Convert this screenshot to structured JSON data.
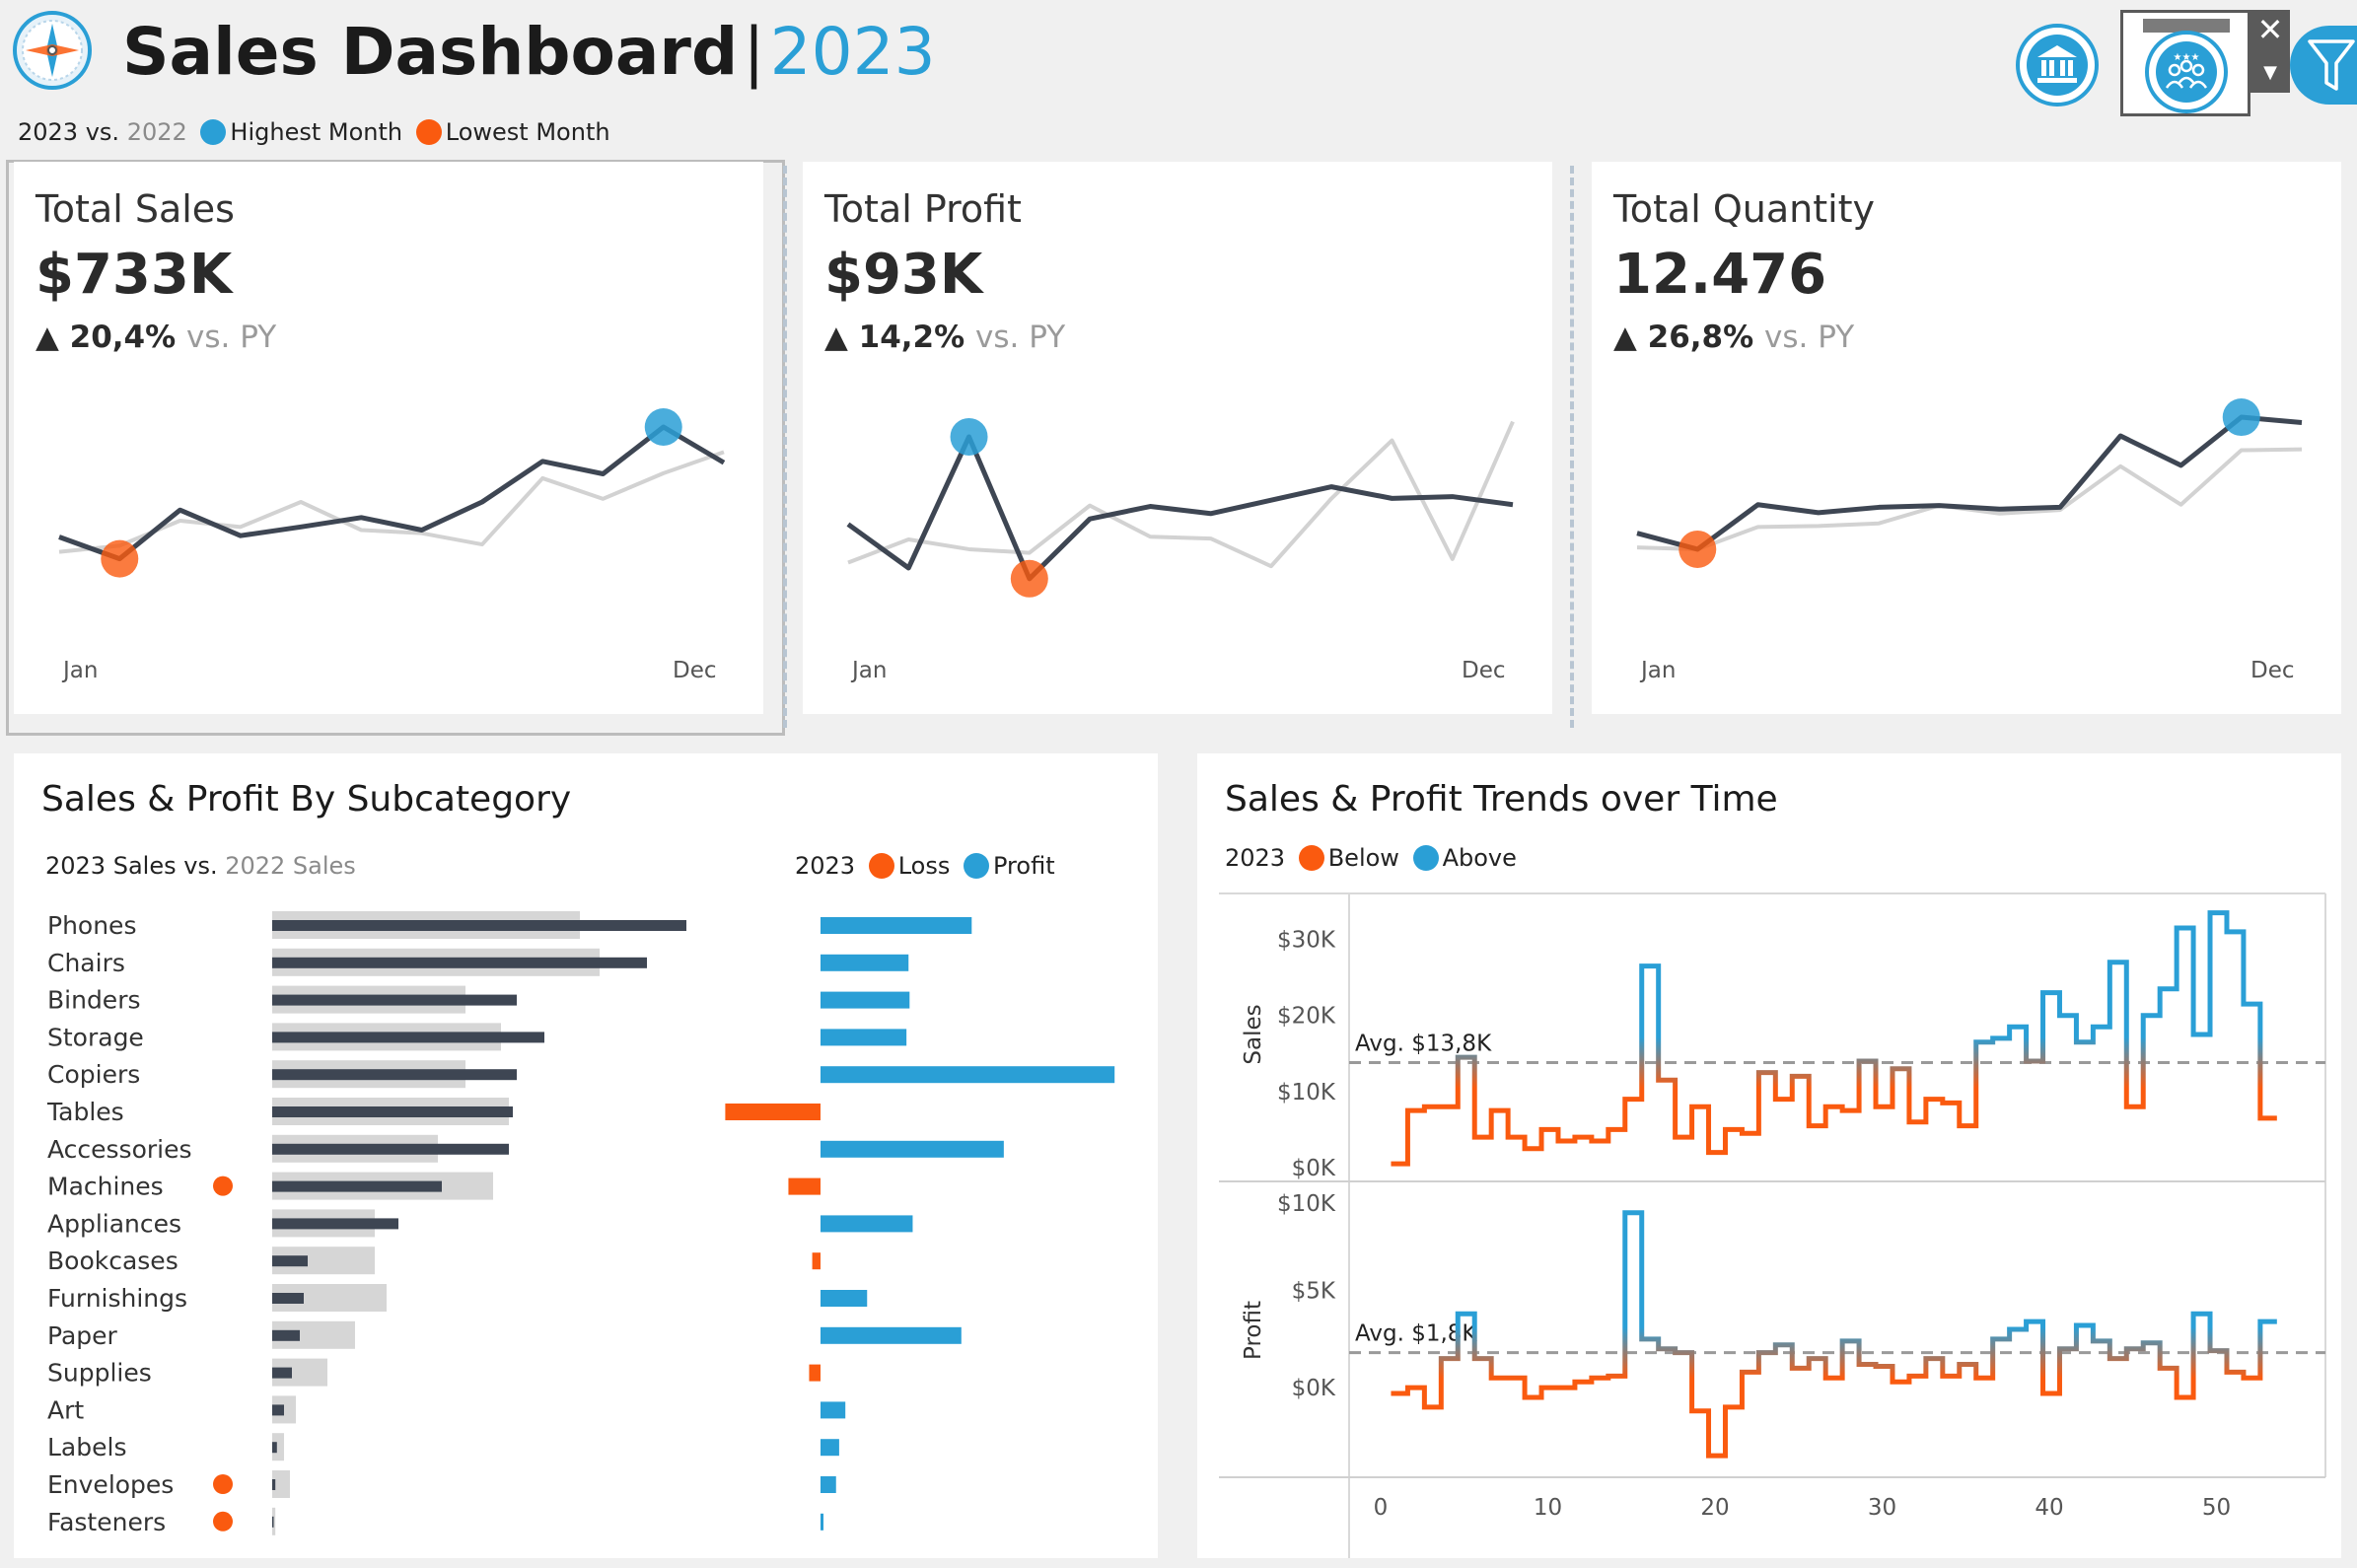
{
  "header": {
    "title": "Sales Dashboard",
    "separator": "|",
    "year": "2023",
    "legend": {
      "current_year": "2023",
      "vs": "vs.",
      "prior_year": "2022",
      "highest_label": "Highest Month",
      "lowest_label": "Lowest Month"
    },
    "icons": {
      "logo": "compass-icon",
      "bank": "bank-icon",
      "customers": "people-icon",
      "close": "close-icon",
      "dropdown": "chevron-down-icon",
      "filter": "filter-icon"
    }
  },
  "colors": {
    "accent_blue": "#2a9fd6",
    "accent_orange": "#fa5a0f",
    "dark_line": "#3e4653",
    "light_line": "#d2d2d2",
    "bg": "#f0f0f0"
  },
  "kpis": [
    {
      "label": "Total Sales",
      "value": "$733K",
      "arrow": "▲",
      "change": "20,4%",
      "vs_label": "vs. PY",
      "x_start": "Jan",
      "x_end": "Dec"
    },
    {
      "label": "Total Profit",
      "value": "$93K",
      "arrow": "▲",
      "change": "14,2%",
      "vs_label": "vs. PY",
      "x_start": "Jan",
      "x_end": "Dec"
    },
    {
      "label": "Total Quantity",
      "value": "12.476",
      "arrow": "▲",
      "change": "26,8%",
      "vs_label": "vs. PY",
      "x_start": "Jan",
      "x_end": "Dec"
    }
  ],
  "subcategory": {
    "title": "Sales & Profit By Subcategory",
    "sales_legend": {
      "current": "2023 Sales",
      "vs": "vs.",
      "prior": "2022 Sales"
    },
    "profit_legend": {
      "year": "2023",
      "loss": "Loss",
      "profit": "Profit"
    }
  },
  "trends": {
    "title": "Sales & Profit Trends over Time",
    "legend": {
      "year": "2023",
      "below": "Below",
      "above": "Above"
    },
    "sales_axis_label": "Sales",
    "profit_axis_label": "Profit",
    "sales_avg_label": "Avg. $13,8K",
    "profit_avg_label": "Avg. $1,8K"
  },
  "chart_data": [
    {
      "type": "line",
      "name": "kpi-sales-sparkline",
      "x": [
        "Jan",
        "Feb",
        "Mar",
        "Apr",
        "May",
        "Jun",
        "Jul",
        "Aug",
        "Sep",
        "Oct",
        "Nov",
        "Dec"
      ],
      "series": [
        {
          "values": [
            94,
            59,
            137,
            96,
            110,
            125,
            105,
            150,
            215,
            195,
            270,
            213
          ]
        },
        {
          "values": [
            70,
            80,
            120,
            110,
            150,
            105,
            100,
            82,
            188,
            155,
            196,
            230
          ]
        }
      ],
      "highlight": {
        "highest": "Nov",
        "lowest": "Feb"
      },
      "ylim": [
        0,
        300
      ]
    },
    {
      "type": "line",
      "name": "kpi-profit-sparkline",
      "x": [
        "Jan",
        "Feb",
        "Mar",
        "Apr",
        "May",
        "Jun",
        "Jul",
        "Aug",
        "Sep",
        "Oct",
        "Nov",
        "Dec"
      ],
      "series": [
        {
          "values": [
            8.0,
            3.1,
            17.8,
            1.9,
            8.6,
            10.0,
            9.2,
            10.7,
            12.2,
            10.9,
            11.1,
            10.2
          ]
        },
        {
          "values": [
            3.7,
            6.3,
            5.2,
            4.8,
            10.1,
            6.6,
            6.4,
            3.3,
            10.9,
            17.4,
            4.1,
            19.5
          ]
        }
      ],
      "highlight": {
        "highest": "Mar",
        "lowest": "Apr"
      },
      "ylim": [
        0,
        21
      ]
    },
    {
      "type": "line",
      "name": "kpi-quantity-sparkline",
      "x": [
        "Jan",
        "Feb",
        "Mar",
        "Apr",
        "May",
        "Jun",
        "Jul",
        "Aug",
        "Sep",
        "Oct",
        "Nov",
        "Dec"
      ],
      "series": [
        {
          "values": [
            700,
            520,
            1020,
            930,
            990,
            1010,
            970,
            990,
            1790,
            1460,
            2000,
            1940
          ]
        },
        {
          "values": [
            540,
            520,
            770,
            780,
            810,
            1010,
            920,
            960,
            1450,
            1020,
            1630,
            1640
          ]
        }
      ],
      "highlight": {
        "highest": "Nov",
        "lowest": "Feb"
      },
      "ylim": [
        0,
        2100
      ]
    },
    {
      "type": "bar",
      "name": "subcategory-sales-bars",
      "categories": [
        "Phones",
        "Chairs",
        "Binders",
        "Storage",
        "Copiers",
        "Tables",
        "Accessories",
        "Machines",
        "Appliances",
        "Bookcases",
        "Furnishings",
        "Paper",
        "Supplies",
        "Art",
        "Labels",
        "Envelopes",
        "Fasteners"
      ],
      "loss_flag": [
        "Machines",
        "Envelopes",
        "Fasteners"
      ],
      "series": [
        {
          "name": "2023 Sales",
          "values": [
            105,
            95,
            62,
            69,
            62,
            61,
            60,
            43,
            32,
            9,
            8,
            7,
            5,
            3,
            1.2,
            0.8,
            0.2
          ]
        },
        {
          "name": "2022 Sales",
          "values": [
            78,
            83,
            49,
            58,
            49,
            60,
            42,
            56,
            26,
            26,
            29,
            21,
            14,
            6,
            3,
            4.5,
            0.8
          ]
        }
      ]
    },
    {
      "type": "bar",
      "name": "subcategory-profit-bars",
      "categories": [
        "Phones",
        "Chairs",
        "Binders",
        "Storage",
        "Copiers",
        "Tables",
        "Accessories",
        "Machines",
        "Appliances",
        "Bookcases",
        "Furnishings",
        "Paper",
        "Supplies",
        "Art",
        "Labels",
        "Envelopes",
        "Fasteners"
      ],
      "values": [
        14.6,
        8.5,
        8.6,
        8.3,
        28.4,
        -9.2,
        17.7,
        -3.1,
        8.9,
        -0.8,
        4.5,
        13.6,
        -1.1,
        2.4,
        1.8,
        1.5,
        0.2
      ]
    },
    {
      "type": "line",
      "name": "weekly-sales-trend",
      "ylabel": "Sales",
      "x": [
        1,
        2,
        3,
        4,
        5,
        6,
        7,
        8,
        9,
        10,
        11,
        12,
        13,
        14,
        15,
        16,
        17,
        18,
        19,
        20,
        21,
        22,
        23,
        24,
        25,
        26,
        27,
        28,
        29,
        30,
        31,
        32,
        33,
        34,
        35,
        36,
        37,
        38,
        39,
        40,
        41,
        42,
        43,
        44,
        45,
        46,
        47,
        48,
        49,
        50,
        51,
        52,
        53
      ],
      "values": [
        0.5,
        7.5,
        8,
        8,
        14.5,
        4,
        7.5,
        4,
        2.5,
        5,
        3.5,
        4,
        3.5,
        5,
        9,
        26.5,
        11.5,
        4,
        8,
        2,
        5,
        4.5,
        12.5,
        9,
        12,
        5.5,
        8,
        7.5,
        14,
        8,
        13,
        6,
        9,
        8.5,
        5.5,
        16.5,
        17,
        18.5,
        14,
        23,
        20,
        16.5,
        18.5,
        27,
        8,
        20,
        23.5,
        31.5,
        17.5,
        33.5,
        31,
        21.5,
        6.5
      ],
      "average": 13.8,
      "ylim": [
        0,
        35
      ],
      "y_ticks": [
        "$0K",
        "$10K",
        "$20K",
        "$30K"
      ],
      "x_ticks": [
        0,
        10,
        20,
        30,
        40,
        50
      ]
    },
    {
      "type": "line",
      "name": "weekly-profit-trend",
      "ylabel": "Profit",
      "x": [
        1,
        2,
        3,
        4,
        5,
        6,
        7,
        8,
        9,
        10,
        11,
        12,
        13,
        14,
        15,
        16,
        17,
        18,
        19,
        20,
        21,
        22,
        23,
        24,
        25,
        26,
        27,
        28,
        29,
        30,
        31,
        32,
        33,
        34,
        35,
        36,
        37,
        38,
        39,
        40,
        41,
        42,
        43,
        44,
        45,
        46,
        47,
        48,
        49,
        50,
        51,
        52,
        53
      ],
      "values": [
        -0.3,
        0,
        -1,
        1.5,
        3.8,
        1.5,
        0.5,
        0.5,
        -0.5,
        0,
        0,
        0.3,
        0.5,
        0.6,
        9,
        2.5,
        2,
        1.8,
        -1.2,
        -3.5,
        -1,
        0.8,
        1.8,
        2.2,
        1,
        1.5,
        0.5,
        2.4,
        1.2,
        1.1,
        0.3,
        0.6,
        1.5,
        0.6,
        1.2,
        0.5,
        2.5,
        3,
        3.4,
        -0.3,
        2,
        3.2,
        2.4,
        1.5,
        2,
        2.3,
        1,
        -0.5,
        3.8,
        1.9,
        0.8,
        0.5,
        3.4
      ],
      "average": 1.8,
      "ylim": [
        -4,
        10
      ],
      "y_ticks": [
        "$0K",
        "$5K",
        "$10K"
      ],
      "x_ticks": [
        0,
        10,
        20,
        30,
        40,
        50
      ]
    }
  ]
}
